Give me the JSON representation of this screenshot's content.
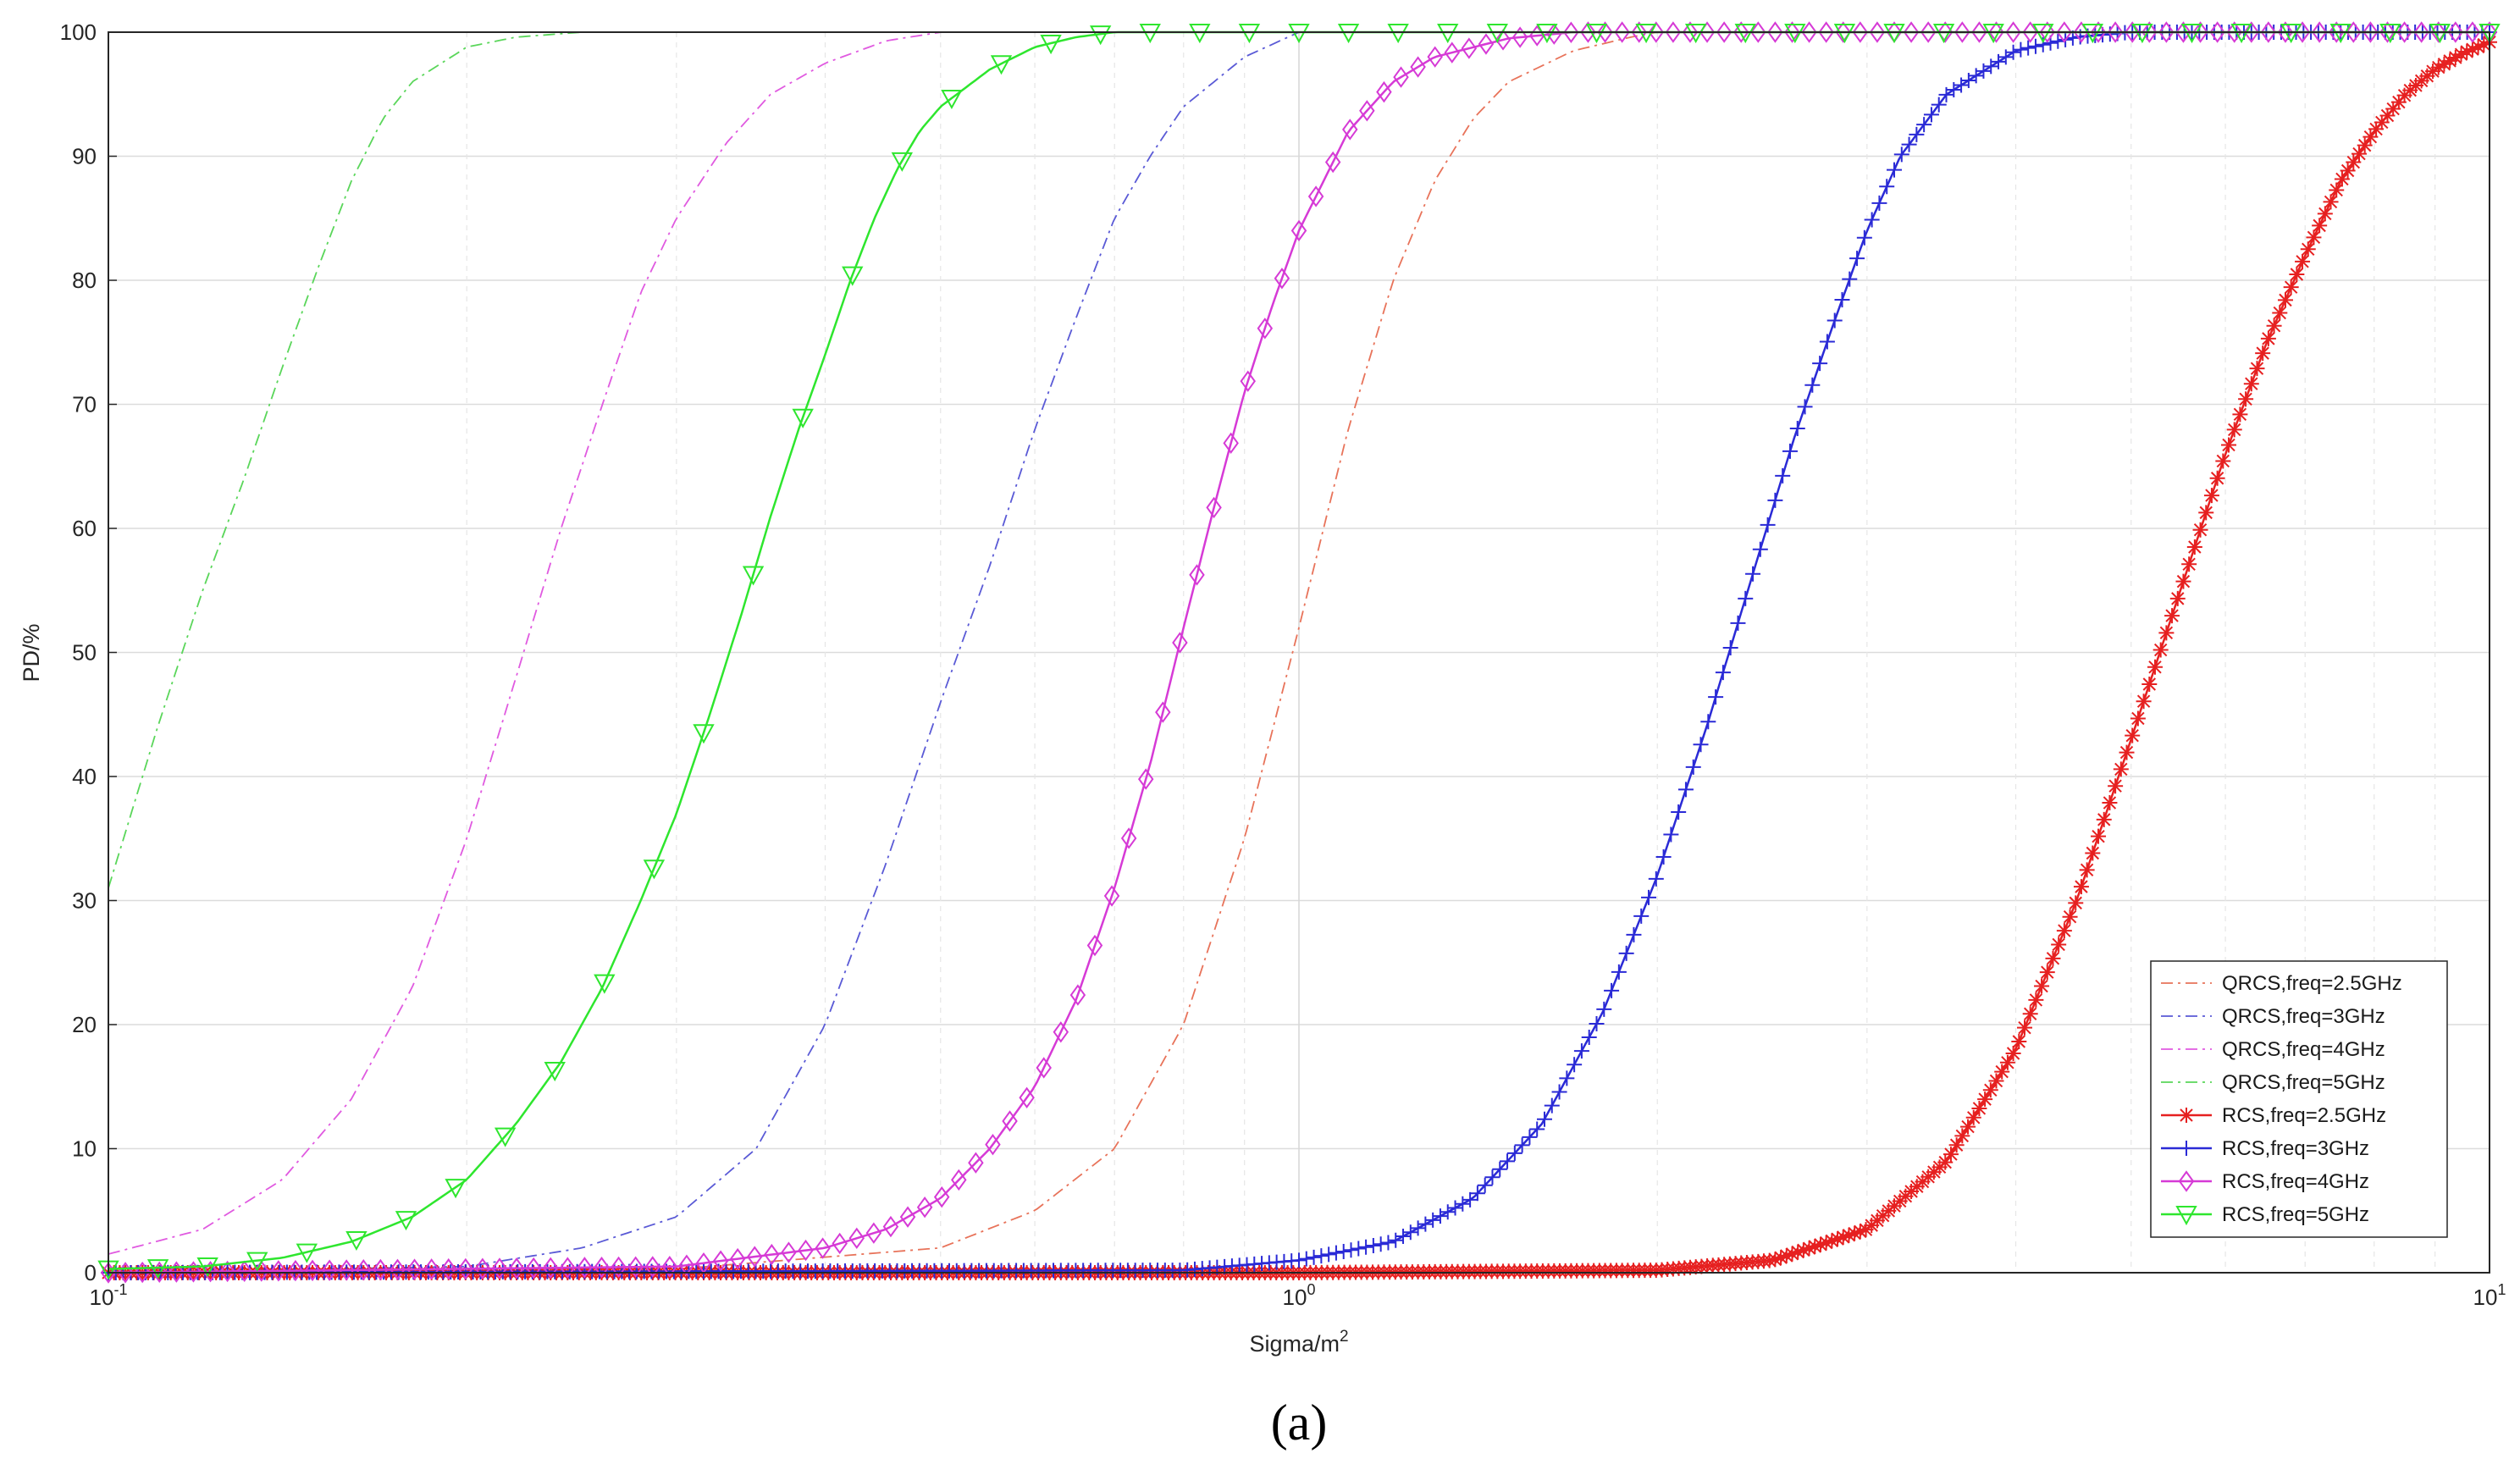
{
  "chart_data": {
    "type": "line",
    "xlabel": "Sigma/m",
    "xlabel_sup": "2",
    "ylabel": "PD/%",
    "xscale": "log",
    "xlim": [
      0.1,
      10
    ],
    "ylim": [
      0,
      100
    ],
    "x_ticks": [
      {
        "value": 0.1,
        "base": "10",
        "exp": "-1"
      },
      {
        "value": 1,
        "base": "10",
        "exp": "0"
      },
      {
        "value": 10,
        "base": "10",
        "exp": "1"
      }
    ],
    "y_ticks": [
      0,
      10,
      20,
      30,
      40,
      50,
      60,
      70,
      80,
      90,
      100
    ],
    "grid": true,
    "legend_position": "bottom-right",
    "caption": "(a)",
    "series": [
      {
        "name": "QRCS,freq=2.5GHz",
        "color": "#e8735a",
        "style": "dashdot",
        "marker": "none",
        "x": [
          0.1,
          0.3,
          0.5,
          0.6,
          0.7,
          0.8,
          0.9,
          1.0,
          1.1,
          1.2,
          1.3,
          1.4,
          1.5,
          1.7,
          1.9,
          2.0,
          10
        ],
        "y": [
          0,
          0.3,
          2,
          5,
          10,
          20,
          35,
          52,
          68,
          80,
          88,
          93,
          96,
          98.5,
          99.6,
          100,
          100
        ]
      },
      {
        "name": "QRCS,freq=3GHz",
        "color": "#5a5ad6",
        "style": "dashdot",
        "marker": "none",
        "x": [
          0.1,
          0.2,
          0.25,
          0.3,
          0.35,
          0.4,
          0.45,
          0.5,
          0.55,
          0.6,
          0.65,
          0.7,
          0.75,
          0.8,
          0.9,
          1.0,
          10
        ],
        "y": [
          0,
          0.5,
          2,
          4.5,
          10,
          20,
          33,
          46,
          57,
          68,
          77,
          85,
          90,
          94,
          98,
          100,
          100
        ]
      },
      {
        "name": "QRCS,freq=4GHz",
        "color": "#e05ae0",
        "style": "dashdot",
        "marker": "none",
        "x": [
          0.1,
          0.12,
          0.14,
          0.16,
          0.18,
          0.2,
          0.22,
          0.24,
          0.26,
          0.28,
          0.3,
          0.33,
          0.36,
          0.4,
          0.45,
          0.5,
          10
        ],
        "y": [
          1.5,
          3.5,
          7.5,
          14,
          23,
          35,
          48,
          60,
          70,
          79,
          85,
          91,
          95,
          97.5,
          99.3,
          100,
          100
        ]
      },
      {
        "name": "QRCS,freq=5GHz",
        "color": "#5ad65a",
        "style": "dashdot",
        "marker": "none",
        "x": [
          0.1,
          0.11,
          0.12,
          0.13,
          0.14,
          0.15,
          0.16,
          0.17,
          0.18,
          0.2,
          0.22,
          0.25,
          10
        ],
        "y": [
          31,
          44,
          55,
          64,
          73,
          81,
          88,
          93,
          96,
          98.8,
          99.6,
          100,
          100
        ]
      },
      {
        "name": "RCS,freq=2.5GHz",
        "color": "#e62020",
        "style": "solid",
        "marker": "star",
        "x": [
          0.1,
          1.0,
          2.0,
          2.5,
          3.0,
          3.5,
          4.0,
          4.5,
          5.0,
          5.5,
          6.0,
          6.5,
          7.0,
          7.5,
          8.0,
          8.5,
          9.0,
          9.5,
          10
        ],
        "y": [
          0,
          0,
          0.2,
          1,
          3.5,
          9,
          18,
          30,
          43,
          55,
          66,
          75,
          82,
          88,
          92,
          95,
          97,
          98.3,
          99.2
        ]
      },
      {
        "name": "RCS,freq=3GHz",
        "color": "#2a2ad6",
        "style": "solid",
        "marker": "plus",
        "x": [
          0.1,
          0.8,
          1.0,
          1.2,
          1.4,
          1.6,
          1.8,
          2.0,
          2.2,
          2.4,
          2.6,
          2.8,
          3.0,
          3.2,
          3.5,
          4.0,
          4.5,
          5.0,
          10
        ],
        "y": [
          0,
          0.2,
          1,
          2.5,
          6,
          12,
          21,
          32,
          44,
          56,
          67,
          76,
          84,
          90,
          95,
          98.5,
          99.6,
          100,
          100
        ]
      },
      {
        "name": "RCS,freq=4GHz",
        "color": "#d63ad6",
        "style": "solid",
        "marker": "diamond",
        "x": [
          0.1,
          0.3,
          0.4,
          0.45,
          0.5,
          0.55,
          0.6,
          0.65,
          0.7,
          0.75,
          0.8,
          0.85,
          0.9,
          0.95,
          1.0,
          1.1,
          1.2,
          1.3,
          1.5,
          1.7,
          1.9,
          10
        ],
        "y": [
          0,
          0.5,
          2,
          3.5,
          6,
          10,
          15,
          22,
          31,
          41,
          52,
          62,
          71,
          78,
          84,
          92,
          96,
          98,
          99.5,
          100,
          100,
          100
        ]
      },
      {
        "name": "RCS,freq=5GHz",
        "color": "#2ee62e",
        "style": "solid",
        "marker": "triangle-down",
        "x": [
          0.1,
          0.12,
          0.14,
          0.16,
          0.18,
          0.2,
          0.22,
          0.24,
          0.26,
          0.28,
          0.3,
          0.32,
          0.34,
          0.36,
          0.38,
          0.4,
          0.42,
          0.44,
          0.46,
          0.48,
          0.5,
          0.55,
          0.6,
          0.65,
          0.7,
          10
        ],
        "y": [
          0.3,
          0.5,
          1.2,
          2.5,
          4.5,
          7.5,
          12,
          17,
          23,
          30,
          37,
          45,
          53,
          61,
          68,
          74,
          80,
          85,
          89,
          92,
          94,
          97,
          98.8,
          99.6,
          100,
          100
        ]
      }
    ]
  }
}
